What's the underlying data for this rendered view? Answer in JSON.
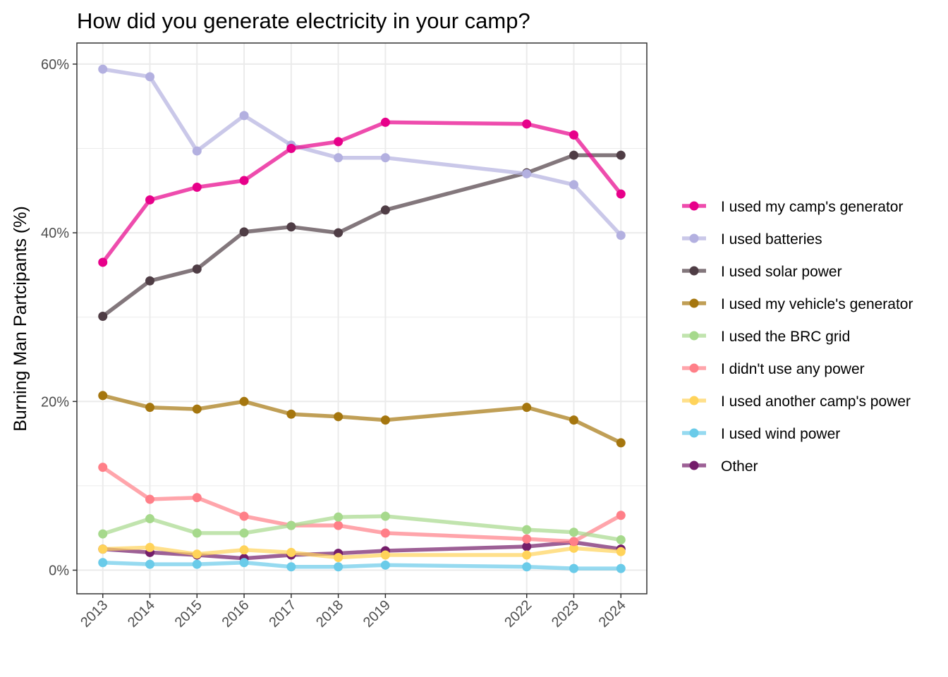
{
  "chart_data": {
    "type": "line",
    "title": "How did you generate electricity in your camp?",
    "xlabel": "",
    "ylabel": "Burning Man Partcipants (%)",
    "x": [
      2013,
      2014,
      2015,
      2016,
      2017,
      2018,
      2019,
      2022,
      2023,
      2024
    ],
    "x_tick_labels": [
      "2013",
      "2014",
      "2015",
      "2016",
      "2017",
      "2018",
      "2019",
      "2022",
      "2023",
      "2024"
    ],
    "xlim": [
      2012.45,
      2024.55
    ],
    "ylim": [
      -2.8,
      62.5
    ],
    "y_ticks": [
      0,
      20,
      40,
      60
    ],
    "y_tick_labels": [
      "0%",
      "20%",
      "40%",
      "60%"
    ],
    "grid": true,
    "legend_position": "right",
    "series": [
      {
        "name": "I used my camp's generator",
        "color": "#e7008a",
        "values": [
          36.5,
          43.9,
          45.4,
          46.2,
          50.0,
          50.8,
          53.1,
          52.9,
          51.6,
          44.6
        ]
      },
      {
        "name": "I used batteries",
        "color": "#b3b0e0",
        "values": [
          59.4,
          58.5,
          49.7,
          53.9,
          50.4,
          48.9,
          48.9,
          47.0,
          45.7,
          39.7
        ]
      },
      {
        "name": "I used solar power",
        "color": "#4f3d45",
        "values": [
          30.1,
          34.3,
          35.7,
          40.1,
          40.7,
          40.0,
          42.7,
          47.1,
          49.2,
          49.2
        ]
      },
      {
        "name": "I used my vehicle's generator",
        "color": "#a5760e",
        "values": [
          20.7,
          19.3,
          19.1,
          20.0,
          18.5,
          18.2,
          17.8,
          19.3,
          17.8,
          15.1
        ]
      },
      {
        "name": "I used the BRC grid",
        "color": "#a6d98c",
        "values": [
          4.3,
          6.1,
          4.4,
          4.4,
          5.3,
          6.3,
          6.4,
          4.8,
          4.5,
          3.6
        ]
      },
      {
        "name": "I didn't use any power",
        "color": "#ff7f88",
        "values": [
          12.2,
          8.4,
          8.6,
          6.4,
          5.3,
          5.3,
          4.4,
          3.7,
          3.4,
          6.5
        ]
      },
      {
        "name": "I used another camp's power",
        "color": "#ffd35a",
        "values": [
          2.5,
          2.7,
          1.9,
          2.4,
          2.1,
          1.5,
          1.8,
          1.8,
          2.6,
          2.2
        ]
      },
      {
        "name": "I used wind power",
        "color": "#6acbe9",
        "values": [
          0.9,
          0.7,
          0.7,
          0.9,
          0.4,
          0.4,
          0.6,
          0.4,
          0.2,
          0.2
        ]
      },
      {
        "name": "Other",
        "color": "#741d6a",
        "values": [
          2.5,
          2.1,
          1.8,
          1.4,
          1.8,
          2.0,
          2.3,
          2.8,
          3.3,
          2.5
        ]
      }
    ]
  }
}
